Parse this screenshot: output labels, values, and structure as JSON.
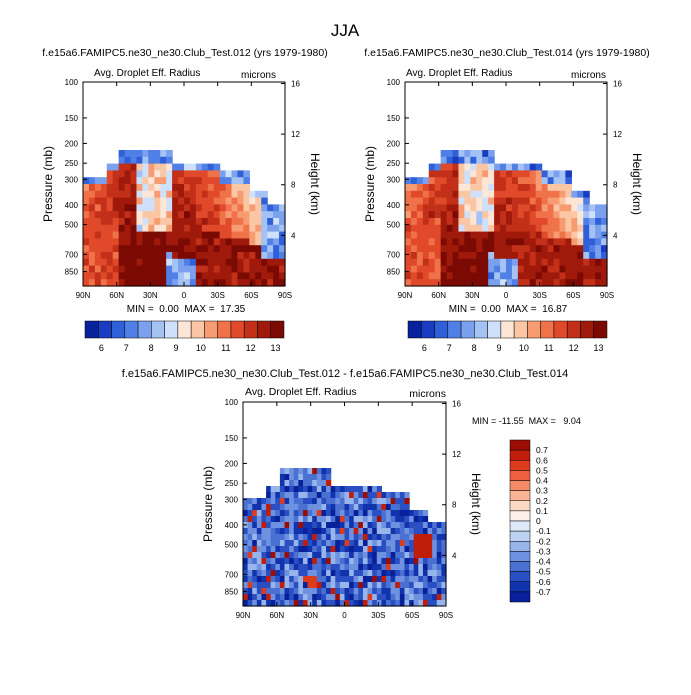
{
  "page_title": "JJA",
  "colors": {
    "land_red": "#8b0e04",
    "ocean_blue": "#0b2b9c",
    "missing": "#ffffff"
  },
  "chart_data": [
    {
      "id": "panel1",
      "type": "heatmap",
      "title": "f.e15a6.FAMIPC5.ne30_ne30.Club_Test.012 (yrs 1979-1980)",
      "left_label": "Avg. Droplet Eff. Radius",
      "right_label": "microns",
      "xlabel": "",
      "ylabel": "Pressure (mb)",
      "y2label": "Height (km)",
      "x_ticks": [
        "90N",
        "60N",
        "30N",
        "0",
        "30S",
        "60S",
        "90S"
      ],
      "x_range": [
        90,
        -90
      ],
      "pressure_ticks": [
        100,
        150,
        200,
        250,
        300,
        400,
        500,
        700,
        850
      ],
      "height_ticks": [
        16,
        12,
        8,
        4
      ],
      "y_range": [
        100,
        1000
      ],
      "stats": "MIN =  0.00  MAX =  17.35",
      "min": 0.0,
      "max": 17.35,
      "colorbar_labels": [
        "6",
        "7",
        "8",
        "9",
        "10",
        "11",
        "12",
        "13"
      ],
      "colorbar_colors": [
        "#08219c",
        "#1a3cc0",
        "#3060d8",
        "#5080e6",
        "#7aa0ee",
        "#a4c2f4",
        "#cfe0fa",
        "#fde6d6",
        "#fbc6a4",
        "#f79c72",
        "#ef7249",
        "#e04a2a",
        "#c3301a",
        "#a01a0c",
        "#7c0a04"
      ]
    },
    {
      "id": "panel2",
      "type": "heatmap",
      "title": "f.e15a6.FAMIPC5.ne30_ne30.Club_Test.014 (yrs 1979-1980)",
      "left_label": "Avg. Droplet Eff. Radius",
      "right_label": "microns",
      "xlabel": "",
      "ylabel": "Pressure (mb)",
      "y2label": "Height (km)",
      "x_ticks": [
        "90N",
        "60N",
        "30N",
        "0",
        "30S",
        "60S",
        "90S"
      ],
      "x_range": [
        90,
        -90
      ],
      "pressure_ticks": [
        100,
        150,
        200,
        250,
        300,
        400,
        500,
        700,
        850
      ],
      "height_ticks": [
        16,
        12,
        8,
        4
      ],
      "y_range": [
        100,
        1000
      ],
      "stats": "MIN =  0.00  MAX =  16.87",
      "min": 0.0,
      "max": 16.87,
      "colorbar_labels": [
        "6",
        "7",
        "8",
        "9",
        "10",
        "11",
        "12",
        "13"
      ],
      "colorbar_colors": [
        "#08219c",
        "#1a3cc0",
        "#3060d8",
        "#5080e6",
        "#7aa0ee",
        "#a4c2f4",
        "#cfe0fa",
        "#fde6d6",
        "#fbc6a4",
        "#f79c72",
        "#ef7249",
        "#e04a2a",
        "#c3301a",
        "#a01a0c",
        "#7c0a04"
      ]
    },
    {
      "id": "panel3",
      "type": "heatmap",
      "title": "f.e15a6.FAMIPC5.ne30_ne30.Club_Test.012 - f.e15a6.FAMIPC5.ne30_ne30.Club_Test.014",
      "left_label": "Avg. Droplet Eff. Radius",
      "right_label": "microns",
      "xlabel": "",
      "ylabel": "Pressure (mb)",
      "y2label": "Height (km)",
      "x_ticks": [
        "90N",
        "60N",
        "30N",
        "0",
        "30S",
        "60S",
        "90S"
      ],
      "x_range": [
        90,
        -90
      ],
      "pressure_ticks": [
        100,
        150,
        200,
        250,
        300,
        400,
        500,
        700,
        850
      ],
      "height_ticks": [
        16,
        12,
        8,
        4
      ],
      "y_range": [
        100,
        1000
      ],
      "stats": "MIN = -11.55  MAX =   9.04",
      "min": -11.55,
      "max": 9.04,
      "colorbar_labels": [
        "0.7",
        "0.6",
        "0.5",
        "0.4",
        "0.3",
        "0.2",
        "0.1",
        "0",
        "-0.1",
        "-0.2",
        "-0.3",
        "-0.4",
        "-0.5",
        "-0.6",
        "-0.7"
      ],
      "colorbar_colors": [
        "#9c0d04",
        "#c01e0a",
        "#dd3c1c",
        "#ee6040",
        "#f58a68",
        "#f9b496",
        "#fcd9c4",
        "#fdf1ea",
        "#dde9f8",
        "#bcd3f2",
        "#97b5ea",
        "#6e92df",
        "#4a70d2",
        "#2a4fc2",
        "#1233ae",
        "#08219a"
      ]
    }
  ]
}
